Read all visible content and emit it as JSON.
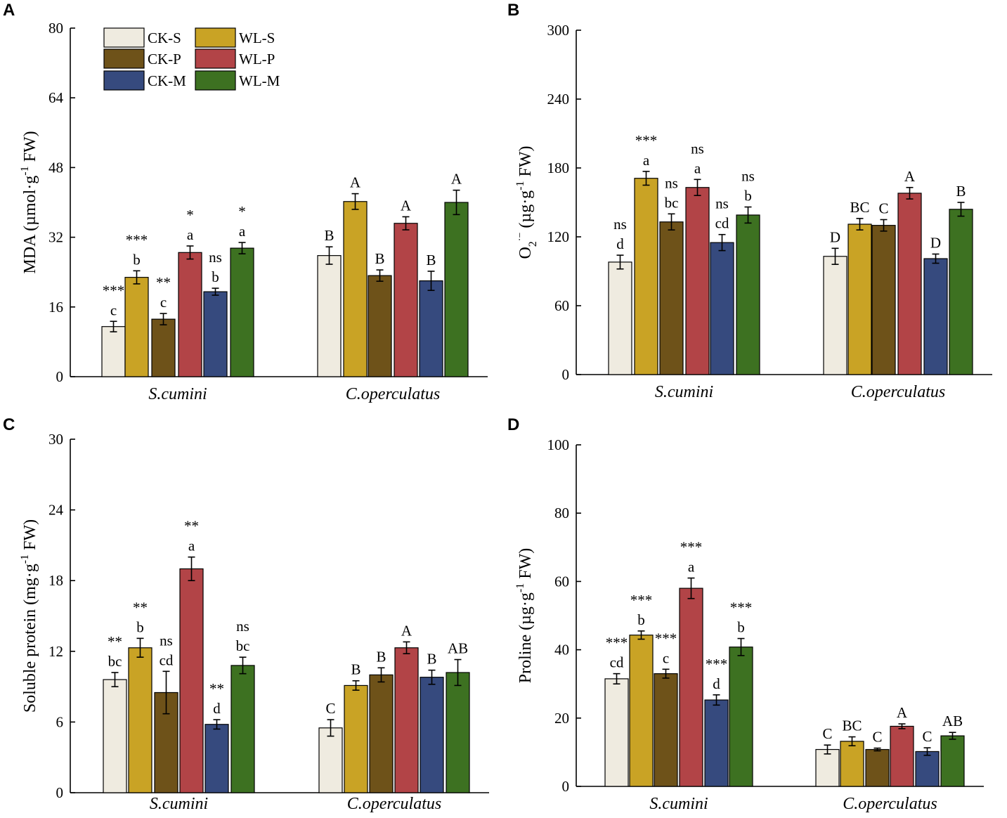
{
  "chart_data": [
    {
      "panel": "A",
      "type": "bar",
      "ylabel_main": "MDA (µmol·g",
      "ylabel_sup": "-1",
      "ylabel_tail": " FW)",
      "ylim": [
        0,
        80
      ],
      "yticks": [
        "0",
        "16",
        "32",
        "48",
        "64",
        "80"
      ],
      "categories": [
        "S.cumini",
        "C.operculatus"
      ],
      "series_names": [
        "CK-S",
        "WL-S",
        "CK-P",
        "WL-P",
        "CK-M",
        "WL-M"
      ],
      "values": [
        [
          11.5,
          22.8,
          13.2,
          28.5,
          19.5,
          29.5
        ],
        [
          27.8,
          40.2,
          23.2,
          35.2,
          22.0,
          40.0
        ]
      ],
      "errors": [
        [
          1.2,
          1.5,
          1.3,
          1.5,
          0.8,
          1.3
        ],
        [
          2.0,
          1.8,
          1.3,
          1.5,
          2.2,
          2.8
        ]
      ],
      "letters": [
        [
          "c",
          "b",
          "c",
          "a",
          "b",
          "a"
        ],
        [
          "B",
          "A",
          "B",
          "A",
          "B",
          "A"
        ]
      ],
      "sig": [
        "***",
        "***",
        "**",
        "*",
        "ns",
        "*"
      ]
    },
    {
      "panel": "B",
      "type": "bar",
      "ylabel_main": "O",
      "ylabel_sub": "2",
      "ylabel_sup": "·−",
      "ylabel_tail": " (µg·g",
      "ylabel_sup2": "-1",
      "ylabel_tail2": " FW)",
      "ylim": [
        0,
        300
      ],
      "yticks": [
        "0",
        "60",
        "120",
        "180",
        "240",
        "300"
      ],
      "categories": [
        "S.cumini",
        "C.operculatus"
      ],
      "series_names": [
        "CK-S",
        "WL-S",
        "CK-P",
        "WL-P",
        "CK-M",
        "WL-M"
      ],
      "values": [
        [
          98,
          171,
          133,
          163,
          115,
          139
        ],
        [
          103,
          131,
          130,
          158,
          101,
          144
        ]
      ],
      "errors": [
        [
          6,
          6,
          7,
          7,
          7,
          7
        ],
        [
          7,
          5,
          5,
          5,
          4,
          6
        ]
      ],
      "letters": [
        [
          "d",
          "a",
          "bc",
          "a",
          "cd",
          "b"
        ],
        [
          "D",
          "BC",
          "C",
          "A",
          "D",
          "B"
        ]
      ],
      "sig": [
        "ns",
        "***",
        "ns",
        "ns",
        "ns",
        "ns"
      ]
    },
    {
      "panel": "C",
      "type": "bar",
      "ylabel_main": "Soluble protein (mg·g",
      "ylabel_sup": "-1",
      "ylabel_tail": " FW)",
      "ylim": [
        0,
        30
      ],
      "yticks": [
        "0",
        "6",
        "12",
        "18",
        "24",
        "30"
      ],
      "categories": [
        "S.cumini",
        "C.operculatus"
      ],
      "series_names": [
        "CK-S",
        "WL-S",
        "CK-P",
        "WL-P",
        "CK-M",
        "WL-M"
      ],
      "values": [
        [
          9.6,
          12.3,
          8.5,
          19.0,
          5.8,
          10.8
        ],
        [
          5.5,
          9.1,
          10.0,
          12.3,
          9.8,
          10.2
        ]
      ],
      "errors": [
        [
          0.6,
          0.8,
          1.8,
          1.0,
          0.4,
          0.7
        ],
        [
          0.7,
          0.4,
          0.6,
          0.5,
          0.6,
          1.1
        ]
      ],
      "letters": [
        [
          "bc",
          "b",
          "cd",
          "a",
          "d",
          "bc"
        ],
        [
          "C",
          "B",
          "B",
          "A",
          "B",
          "AB"
        ]
      ],
      "sig": [
        "**",
        "**",
        "ns",
        "**",
        "**",
        "ns"
      ]
    },
    {
      "panel": "D",
      "type": "bar",
      "ylabel_main": "Proline (µg·g",
      "ylabel_sup": "-1",
      "ylabel_tail": " FW)",
      "ylim": [
        0,
        100
      ],
      "yticks": [
        "0",
        "20",
        "40",
        "60",
        "80",
        "100"
      ],
      "categories": [
        "S.cumini",
        "C.operculatus"
      ],
      "series_names": [
        "CK-S",
        "WL-S",
        "CK-P",
        "WL-P",
        "CK-M",
        "WL-M"
      ],
      "values": [
        [
          31.5,
          44.3,
          33.0,
          58.0,
          25.3,
          40.8
        ],
        [
          10.8,
          13.2,
          10.8,
          17.6,
          10.2,
          14.8
        ]
      ],
      "errors": [
        [
          1.5,
          1.2,
          1.3,
          3.0,
          1.5,
          2.5
        ],
        [
          1.3,
          1.3,
          0.4,
          0.7,
          1.1,
          1.0
        ]
      ],
      "letters": [
        [
          "cd",
          "b",
          "c",
          "a",
          "d",
          "b"
        ],
        [
          "C",
          "BC",
          "C",
          "A",
          "C",
          "AB"
        ]
      ],
      "sig": [
        "***",
        "***",
        "***",
        "***",
        "***",
        "***"
      ]
    }
  ],
  "legend": [
    {
      "label": "CK-S",
      "color": "#efebe0"
    },
    {
      "label": "WL-S",
      "color": "#c9a325"
    },
    {
      "label": "CK-P",
      "color": "#6e5219"
    },
    {
      "label": "WL-P",
      "color": "#b24447"
    },
    {
      "label": "CK-M",
      "color": "#364a7e"
    },
    {
      "label": "WL-M",
      "color": "#3d7121"
    }
  ],
  "colors": [
    "#efebe0",
    "#c9a325",
    "#6e5219",
    "#b24447",
    "#364a7e",
    "#3d7121"
  ]
}
